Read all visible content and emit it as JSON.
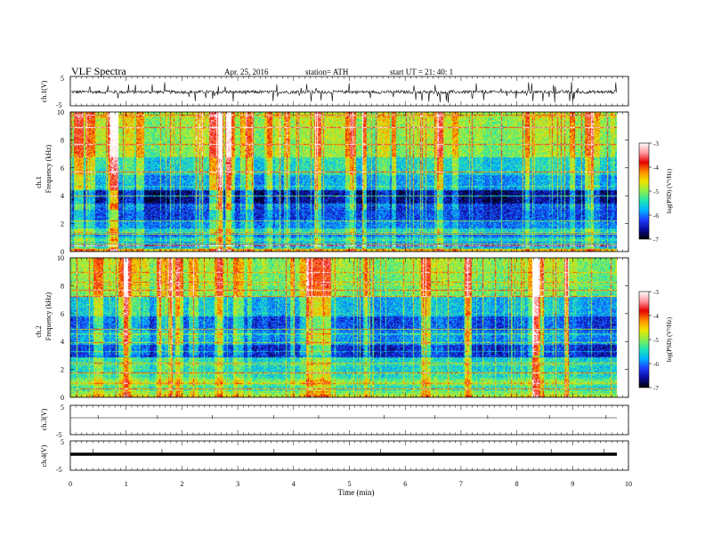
{
  "header": {
    "title": "VLF  Spectra",
    "date": "Apr. 25, 2016",
    "station": "station= ATH",
    "start_time": "start  UT =    21: 40: 1"
  },
  "colors": {
    "spectrum": [
      "#000000",
      "#0a0a9a",
      "#1e3cff",
      "#00b4ff",
      "#1ee6b4",
      "#8cf04a",
      "#f0e600",
      "#ff8c00",
      "#e60000",
      "#ff9aa0",
      "#ffffff"
    ],
    "trace": "#000000",
    "axis": "#000000"
  },
  "chart_data": [
    {
      "type": "line",
      "panel": "ch1-waveform",
      "ylabel": "ch.1(V)",
      "ylim": [
        -5,
        5
      ],
      "y_ticklabels": [
        "5",
        "-5"
      ],
      "description_level": "noise around -0.3 V with spikes"
    },
    {
      "type": "heatmap",
      "panel": "ch1-spectrogram",
      "ylabel_channel": "ch.1",
      "ylabel": "Frequency  (kHz)",
      "ylim": [
        0,
        10
      ],
      "y_ticks": [
        "0",
        "2",
        "4",
        "6",
        "8",
        "10"
      ],
      "colorbar": {
        "label": "log(PSD) (V²/Hz)",
        "range": [
          -7,
          -3
        ],
        "ticks": [
          "-3",
          "-4",
          "-5",
          "-6",
          "-7"
        ]
      }
    },
    {
      "type": "heatmap",
      "panel": "ch2-spectrogram",
      "ylabel_channel": "ch.2",
      "ylabel": "Frequency  (kHz)",
      "ylim": [
        0,
        10
      ],
      "y_ticks": [
        "0",
        "2",
        "4",
        "6",
        "8",
        "10"
      ],
      "colorbar": {
        "label": "log(PSD) (V²/Hz)",
        "range": [
          -7,
          -3
        ],
        "ticks": [
          "-3",
          "-4",
          "-5",
          "-6",
          "-7"
        ]
      }
    },
    {
      "type": "line",
      "panel": "ch3-waveform",
      "ylabel": "ch.3(V)",
      "ylim": [
        -5,
        5
      ],
      "y_ticklabels": [
        "5",
        "-5"
      ]
    },
    {
      "type": "line",
      "panel": "ch4-waveform",
      "ylabel": "ch.4(V)",
      "ylim": [
        -5,
        5
      ],
      "y_ticklabels": [
        "5",
        "-5"
      ],
      "xlabel": "Time  (min)",
      "xlim": [
        0,
        10
      ],
      "x_ticks": [
        "0",
        "1",
        "2",
        "3",
        "4",
        "5",
        "6",
        "7",
        "8",
        "9",
        "10"
      ]
    }
  ]
}
